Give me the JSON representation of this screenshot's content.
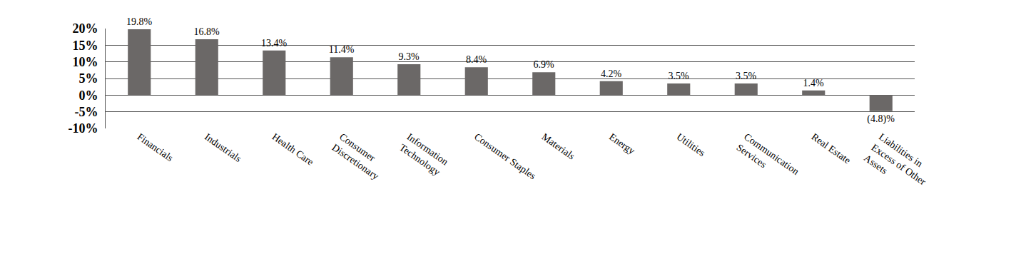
{
  "chart_data": {
    "type": "bar",
    "categories": [
      "Financials",
      "Industrials",
      "Health Care",
      "Consumer Discretionary",
      "Information Technology",
      "Consumer Staples",
      "Materials",
      "Energy",
      "Utilities",
      "Communication Services",
      "Real Estate",
      "Liabilities in Excess of Other Assets"
    ],
    "values": [
      19.8,
      16.8,
      13.4,
      11.4,
      9.3,
      8.4,
      6.9,
      4.2,
      3.5,
      3.5,
      1.4,
      -4.8
    ],
    "value_labels": [
      "19.8%",
      "16.8%",
      "13.4%",
      "11.4%",
      "9.3%",
      "8.4%",
      "6.9%",
      "4.2%",
      "3.5%",
      "3.5%",
      "1.4%",
      "(4.8)%"
    ],
    "data_labels": true,
    "color": "#6b6867",
    "ylim": [
      -10,
      20
    ],
    "yticks": [
      {
        "value": -10,
        "label": "-10%"
      },
      {
        "value": -5,
        "label": "-5%"
      },
      {
        "value": 0,
        "label": "0%"
      },
      {
        "value": 5,
        "label": "5%"
      },
      {
        "value": 10,
        "label": "10%"
      },
      {
        "value": 15,
        "label": "15%"
      },
      {
        "value": 20,
        "label": "20%"
      }
    ],
    "grid": true
  }
}
